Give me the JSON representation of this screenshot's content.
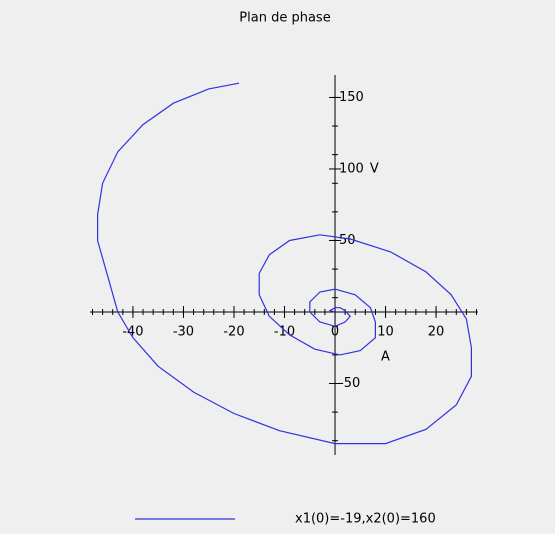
{
  "chart_data": {
    "type": "line",
    "title": "Plan de phase",
    "x_label": "A",
    "y_label": "V",
    "series": [
      {
        "name": "x1(0)=-19,x2(0)=160",
        "color": "#3333dd",
        "x": [
          -19,
          -25,
          -32,
          -38,
          -43,
          -46,
          -47,
          -47,
          -45,
          -43,
          -40,
          -35,
          -28,
          -20,
          -11,
          0,
          10,
          18,
          24,
          27,
          27,
          26,
          23,
          18,
          11,
          3,
          -3,
          -9,
          -13,
          -15,
          -15,
          -13,
          -9,
          -4,
          1,
          5,
          8,
          8,
          7,
          4,
          0,
          -3,
          -5,
          -5,
          -3,
          0,
          2,
          3,
          2,
          1,
          0,
          -1,
          0
        ],
        "values": [
          160,
          156,
          146,
          131,
          112,
          90,
          68,
          50,
          25,
          0,
          -18,
          -38,
          -56,
          -71,
          -83,
          -92,
          -92,
          -82,
          -65,
          -45,
          -25,
          -5,
          12,
          28,
          42,
          51,
          54,
          50,
          40,
          27,
          12,
          -3,
          -16,
          -26,
          -30,
          -27,
          -18,
          -7,
          3,
          12,
          16,
          14,
          7,
          0,
          -7,
          -10,
          -7,
          -3,
          1,
          3,
          3,
          1,
          0
        ]
      }
    ],
    "xlim": [
      -48.5,
      28.3
    ],
    "ylim": [
      -100,
      165.7
    ],
    "xticks": [
      -40,
      -30,
      -20,
      -10,
      0,
      10,
      20
    ],
    "yticks": [
      -50,
      50,
      100,
      150
    ]
  }
}
